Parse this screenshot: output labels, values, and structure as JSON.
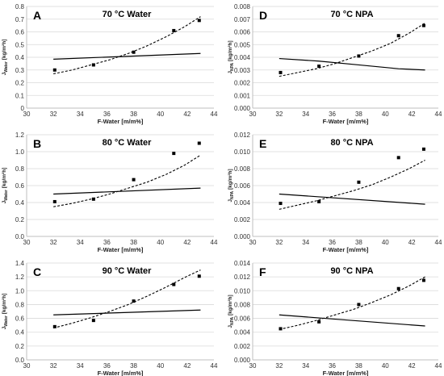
{
  "chart_data": [
    {
      "type": "scatter",
      "panel": "A",
      "title": "70 °C Water",
      "xlabel": "F-Water [m/m%]",
      "ylabel_main": "J",
      "ylabel_sub": "Water",
      "ylabel_unit": " [kg/m²h]",
      "xlim": [
        30,
        44
      ],
      "ylim": [
        0,
        0.8
      ],
      "xticks": [
        "30",
        "32",
        "34",
        "36",
        "38",
        "40",
        "42",
        "44"
      ],
      "yticks": [
        "0",
        "0.1",
        "0.2",
        "0.3",
        "0.4",
        "0.5",
        "0.6",
        "0.7",
        "0.8"
      ],
      "points": {
        "x": [
          32.1,
          35.0,
          38.0,
          41.0,
          42.9
        ],
        "y": [
          0.3,
          0.34,
          0.44,
          0.61,
          0.69
        ]
      },
      "model_line": {
        "x": [
          32.0,
          43.0
        ],
        "y": [
          0.385,
          0.43
        ]
      },
      "exp_fit": {
        "x": [
          32.0,
          33.4,
          34.8,
          36.2,
          37.6,
          39.0,
          40.4,
          41.8,
          43.0
        ],
        "y": [
          0.27,
          0.3,
          0.34,
          0.38,
          0.43,
          0.49,
          0.56,
          0.64,
          0.72
        ]
      }
    },
    {
      "type": "scatter",
      "panel": "B",
      "title": "80 °C Water",
      "xlabel": "F-Water [m/m%]",
      "ylabel_main": "J",
      "ylabel_sub": "Water",
      "ylabel_unit": " [kg/m²h]",
      "xlim": [
        30,
        44
      ],
      "ylim": [
        0,
        1.2
      ],
      "xticks": [
        "30",
        "32",
        "34",
        "36",
        "38",
        "40",
        "42",
        "44"
      ],
      "yticks": [
        "0.0",
        "0.2",
        "0.4",
        "0.6",
        "0.8",
        "1.0",
        "1.2"
      ],
      "points": {
        "x": [
          32.1,
          35.0,
          38.0,
          41.0,
          42.9
        ],
        "y": [
          0.41,
          0.44,
          0.67,
          0.98,
          1.1
        ]
      },
      "model_line": {
        "x": [
          32.0,
          43.0
        ],
        "y": [
          0.5,
          0.57
        ]
      },
      "exp_fit": {
        "x": [
          32.0,
          33.4,
          34.8,
          36.2,
          37.6,
          39.0,
          40.4,
          41.8,
          43.0
        ],
        "y": [
          0.35,
          0.39,
          0.44,
          0.5,
          0.57,
          0.64,
          0.73,
          0.84,
          0.96
        ]
      }
    },
    {
      "type": "scatter",
      "panel": "C",
      "title": "90 °C Water",
      "xlabel": "F-Water [m/m%]",
      "ylabel_main": "J",
      "ylabel_sub": "Water",
      "ylabel_unit": " [kg/m²h]",
      "xlim": [
        30,
        44
      ],
      "ylim": [
        0,
        1.4
      ],
      "xticks": [
        "30",
        "32",
        "34",
        "36",
        "38",
        "40",
        "42",
        "44"
      ],
      "yticks": [
        "0.0",
        "0.2",
        "0.4",
        "0.6",
        "0.8",
        "1.0",
        "1.2",
        "1.4"
      ],
      "points": {
        "x": [
          32.1,
          35.0,
          38.0,
          41.0,
          42.9
        ],
        "y": [
          0.48,
          0.57,
          0.85,
          1.09,
          1.21
        ]
      },
      "model_line": {
        "x": [
          32.0,
          43.0
        ],
        "y": [
          0.65,
          0.72
        ]
      },
      "exp_fit": {
        "x": [
          32.0,
          33.4,
          34.8,
          36.2,
          37.6,
          39.0,
          40.4,
          41.8,
          43.0
        ],
        "y": [
          0.46,
          0.53,
          0.61,
          0.7,
          0.8,
          0.92,
          1.05,
          1.19,
          1.3
        ]
      }
    },
    {
      "type": "scatter",
      "panel": "D",
      "title": "70 °C NPA",
      "xlabel": "F-Water [m/m%]",
      "ylabel_main": "J",
      "ylabel_sub": "NPA",
      "ylabel_unit": " [kg/m²h]",
      "xlim": [
        30,
        44
      ],
      "ylim": [
        0,
        0.008
      ],
      "xticks": [
        "30",
        "32",
        "34",
        "36",
        "38",
        "40",
        "42",
        "44"
      ],
      "yticks": [
        "0.000",
        "0.001",
        "0.002",
        "0.003",
        "0.004",
        "0.005",
        "0.006",
        "0.007",
        "0.008"
      ],
      "points": {
        "x": [
          32.1,
          35.0,
          38.0,
          41.0,
          42.9
        ],
        "y": [
          0.0028,
          0.0033,
          0.0041,
          0.0057,
          0.0065
        ]
      },
      "model_line": {
        "x": [
          32.0,
          35.0,
          38.0,
          41.0,
          43.0
        ],
        "y": [
          0.0039,
          0.0037,
          0.0034,
          0.0031,
          0.003
        ]
      },
      "exp_fit": {
        "x": [
          32.0,
          33.4,
          34.8,
          36.2,
          37.6,
          39.0,
          40.4,
          41.8,
          43.0
        ],
        "y": [
          0.0025,
          0.0028,
          0.0031,
          0.0035,
          0.004,
          0.0045,
          0.0051,
          0.0059,
          0.0067
        ]
      }
    },
    {
      "type": "scatter",
      "panel": "E",
      "title": "80 °C NPA",
      "xlabel": "F-Water [m/m%]",
      "ylabel_main": "J",
      "ylabel_sub": "NPA",
      "ylabel_unit": " [kg/m²h]",
      "xlim": [
        30,
        44
      ],
      "ylim": [
        0,
        0.012
      ],
      "xticks": [
        "30",
        "32",
        "34",
        "36",
        "38",
        "40",
        "42",
        "44"
      ],
      "yticks": [
        "0.000",
        "0.002",
        "0.004",
        "0.006",
        "0.008",
        "0.010",
        "0.012"
      ],
      "points": {
        "x": [
          32.1,
          35.0,
          38.0,
          41.0,
          42.9
        ],
        "y": [
          0.0039,
          0.0041,
          0.0064,
          0.0093,
          0.0103
        ]
      },
      "model_line": {
        "x": [
          32.0,
          43.0
        ],
        "y": [
          0.005,
          0.0038
        ]
      },
      "exp_fit": {
        "x": [
          32.0,
          33.4,
          34.8,
          36.2,
          37.6,
          39.0,
          40.4,
          41.8,
          43.0
        ],
        "y": [
          0.0032,
          0.0037,
          0.0042,
          0.0048,
          0.0054,
          0.0061,
          0.007,
          0.008,
          0.009
        ]
      }
    },
    {
      "type": "scatter",
      "panel": "F",
      "title": "90 °C NPA",
      "xlabel": "F-Water [m/m%]",
      "ylabel_main": "J",
      "ylabel_sub": "NPA",
      "ylabel_unit": " [kg/m²h]",
      "xlim": [
        30,
        44
      ],
      "ylim": [
        0,
        0.014
      ],
      "xticks": [
        "30",
        "32",
        "34",
        "36",
        "38",
        "40",
        "42",
        "44"
      ],
      "yticks": [
        "0.000",
        "0.002",
        "0.004",
        "0.006",
        "0.008",
        "0.010",
        "0.012",
        "0.014"
      ],
      "points": {
        "x": [
          32.1,
          35.0,
          38.0,
          41.0,
          42.9
        ],
        "y": [
          0.0045,
          0.0055,
          0.008,
          0.0103,
          0.0115
        ]
      },
      "model_line": {
        "x": [
          32.0,
          43.0
        ],
        "y": [
          0.0065,
          0.0049
        ]
      },
      "exp_fit": {
        "x": [
          32.0,
          33.4,
          34.8,
          36.2,
          37.6,
          39.0,
          40.4,
          41.8,
          43.0
        ],
        "y": [
          0.0044,
          0.005,
          0.0057,
          0.0065,
          0.0073,
          0.0083,
          0.0094,
          0.0107,
          0.012
        ]
      }
    }
  ]
}
